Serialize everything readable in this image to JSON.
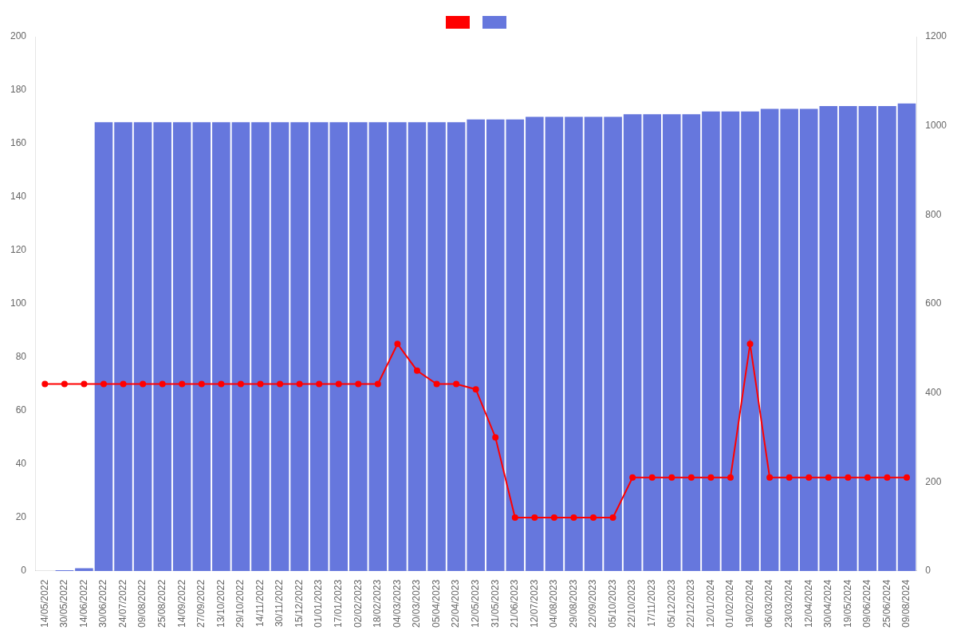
{
  "chart_data": {
    "type": "bar",
    "categories": [
      "14/05/2022",
      "30/05/2022",
      "14/06/2022",
      "30/06/2022",
      "24/07/2022",
      "09/08/2022",
      "25/08/2022",
      "14/09/2022",
      "27/09/2022",
      "13/10/2022",
      "29/10/2022",
      "14/11/2022",
      "30/11/2022",
      "15/12/2022",
      "01/01/2023",
      "17/01/2023",
      "02/02/2023",
      "18/02/2023",
      "04/03/2023",
      "20/03/2023",
      "05/04/2023",
      "22/04/2023",
      "12/05/2023",
      "31/05/2023",
      "21/06/2023",
      "12/07/2023",
      "04/08/2023",
      "29/08/2023",
      "22/09/2023",
      "05/10/2023",
      "22/10/2023",
      "17/11/2023",
      "05/12/2023",
      "22/12/2023",
      "12/01/2024",
      "01/02/2024",
      "19/02/2024",
      "06/03/2024",
      "23/03/2024",
      "12/04/2024",
      "30/04/2024",
      "19/05/2024",
      "09/06/2024",
      "25/06/2024",
      "09/08/2024"
    ],
    "series": [
      {
        "type": "bar",
        "color": "#6677dd",
        "values": [
          0,
          0.3,
          1,
          168,
          168,
          168,
          168,
          168,
          168,
          168,
          168,
          168,
          168,
          168,
          168,
          168,
          168,
          168,
          168,
          168,
          168,
          168,
          169,
          169,
          169,
          170,
          170,
          170,
          170,
          170,
          171,
          171,
          171,
          171,
          172,
          172,
          172,
          173,
          173,
          173,
          174,
          174,
          174,
          174,
          175
        ]
      },
      {
        "type": "line",
        "color": "#ff0000",
        "marker": "circle",
        "values": [
          70,
          70,
          70,
          70,
          70,
          70,
          70,
          70,
          70,
          70,
          70,
          70,
          70,
          70,
          70,
          70,
          70,
          70,
          85,
          75,
          70,
          70,
          68,
          50,
          20,
          20,
          20,
          20,
          20,
          20,
          35,
          35,
          35,
          35,
          35,
          35,
          85,
          35,
          35,
          35,
          35,
          35,
          35,
          35,
          35
        ]
      }
    ],
    "ylim": [
      0,
      200
    ],
    "yticks": [
      0,
      20,
      40,
      60,
      80,
      100,
      120,
      140,
      160,
      180,
      200
    ],
    "y2lim": [
      0,
      1200
    ],
    "y2ticks": [
      0,
      200,
      400,
      600,
      800,
      1000,
      1200
    ],
    "grid": false,
    "legend": "top"
  }
}
